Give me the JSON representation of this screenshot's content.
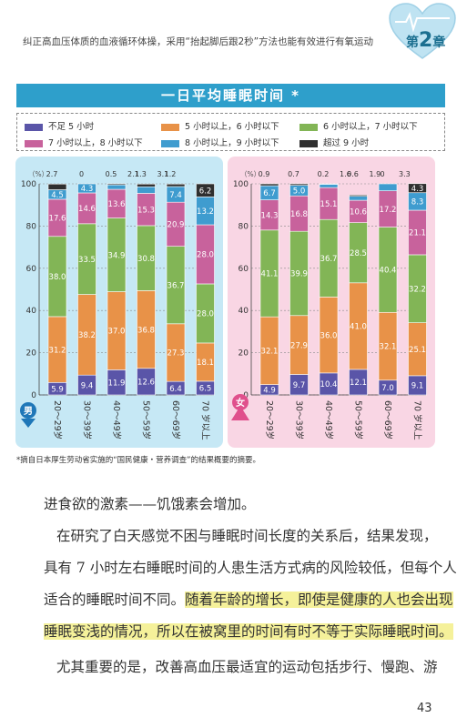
{
  "header": {
    "running_title": "纠正高血压体质的血液循环体操，采用“抬起脚后跟2秒”方法也能有效进行有氧运动",
    "chapter_prefix": "第",
    "chapter_number": "2",
    "chapter_suffix": "章"
  },
  "chart_title": "一日平均睡眠时间 *",
  "legend": [
    {
      "label": "不足 5 小时",
      "color": "#5a55a8"
    },
    {
      "label": "5 小时以上，6 小时以下",
      "color": "#e89248"
    },
    {
      "label": "6 小时以上，7 小时以下",
      "color": "#82b556"
    },
    {
      "label": "7 小时以上，8 小时以下",
      "color": "#c8629c"
    },
    {
      "label": "8 小时以上，9 小时以下",
      "color": "#3f9ccf"
    },
    {
      "label": "超过 9 小时",
      "color": "#2f2f2f"
    }
  ],
  "chart_data": [
    {
      "type": "bar",
      "stacked": true,
      "group": "男",
      "ylabel": "（%）",
      "ylim": [
        0,
        100
      ],
      "yticks": [
        "0",
        "20",
        "40",
        "60",
        "80",
        "100"
      ],
      "categories": [
        "20～29岁",
        "30～39岁",
        "40～49岁",
        "50～59岁",
        "60～69岁",
        "70 岁以上"
      ],
      "series": [
        {
          "name": "不足 5 小时",
          "values": [
            5.9,
            9.4,
            11.9,
            12.6,
            6.4,
            6.5
          ],
          "labels": [
            "5.9",
            "9.4",
            "11.9",
            "12.6",
            "6.4",
            "6.5"
          ]
        },
        {
          "name": "5 小时以上，6 小时以下",
          "values": [
            31.2,
            38.2,
            37.0,
            36.8,
            27.3,
            18.1
          ],
          "labels": [
            "31.2",
            "38.2",
            "37.0",
            "36.8",
            "27.3",
            "18.1"
          ]
        },
        {
          "name": "6 小时以上，7 小时以下",
          "values": [
            38.0,
            33.5,
            34.9,
            30.8,
            36.7,
            28.0
          ],
          "labels": [
            "38.0",
            "33.5",
            "34.9",
            "30.8",
            "36.7",
            "28.0"
          ]
        },
        {
          "name": "7 小时以上，8 小时以下",
          "values": [
            17.6,
            14.6,
            13.6,
            15.3,
            20.9,
            28.0
          ],
          "labels": [
            "17.6",
            "14.6",
            "13.6",
            "15.3",
            "20.9",
            "28.0"
          ]
        },
        {
          "name": "8 小时以上，9 小时以下",
          "values": [
            4.5,
            4.3,
            2.1,
            3.1,
            7.4,
            13.2
          ],
          "labels": [
            "4.5",
            "4.3",
            "2.1",
            "3.1",
            "7.4",
            "13.2"
          ]
        },
        {
          "name": "超过 9 小时",
          "values": [
            2.7,
            0,
            0.5,
            1.3,
            1.2,
            6.2
          ],
          "labels": [
            "2.7",
            "0",
            "0.5",
            "1.3",
            "1.2",
            "6.2"
          ]
        }
      ]
    },
    {
      "type": "bar",
      "stacked": true,
      "group": "女",
      "ylabel": "（%）",
      "ylim": [
        0,
        100
      ],
      "yticks": [
        "0",
        "20",
        "40",
        "60",
        "80",
        "100"
      ],
      "categories": [
        "20～29岁",
        "30～39岁",
        "40～49岁",
        "50～59岁",
        "60～69岁",
        "70 岁以上"
      ],
      "series": [
        {
          "name": "不足 5 小时",
          "values": [
            4.9,
            9.7,
            10.4,
            12.1,
            7.0,
            9.1
          ],
          "labels": [
            "4.9",
            "9.7",
            "10.4",
            "12.1",
            "7.0",
            "9.1"
          ]
        },
        {
          "name": "5 小时以上，6 小时以下",
          "values": [
            32.1,
            27.9,
            36.0,
            41.0,
            32.1,
            25.1
          ],
          "labels": [
            "32.1",
            "27.9",
            "36.0",
            "41.0",
            "32.1",
            "25.1"
          ]
        },
        {
          "name": "6 小时以上，7 小时以下",
          "values": [
            41.1,
            39.9,
            36.7,
            28.5,
            40.4,
            32.2
          ],
          "labels": [
            "41.1",
            "39.9",
            "36.7",
            "28.5",
            "40.4",
            "32.2"
          ]
        },
        {
          "name": "7 小时以上，8 小时以下",
          "values": [
            14.3,
            16.8,
            15.1,
            10.6,
            17.2,
            21.1
          ],
          "labels": [
            "14.3",
            "16.8",
            "15.1",
            "10.6",
            "17.2",
            "21.1"
          ]
        },
        {
          "name": "8 小时以上，9 小时以下",
          "values": [
            6.7,
            5.0,
            1.6,
            1.9,
            3.3,
            8.3
          ],
          "labels": [
            "6.7",
            "5.0",
            "1.6",
            "1.9",
            "3.3",
            "8.3"
          ]
        },
        {
          "name": "超过 9 小时",
          "values": [
            0.9,
            0.7,
            0.2,
            0.6,
            0,
            4.3
          ],
          "labels": [
            "0.9",
            "0.7",
            "0.2",
            "0.6",
            "0",
            "4.3"
          ]
        }
      ]
    }
  ],
  "footnote": "*摘自日本厚生劳动省实施的“国民健康・营养调查”的结果概要的摘要。",
  "body": {
    "line1": "进食欲的激素——饥饿素会增加。",
    "line2": "在研究了白天感觉不困与睡眠时间长度的关系后，结果发现，",
    "line3": "具有 7 小时左右睡眠时间的人患生活方式病的风险较低，但每个人",
    "line4_plain": "适合的睡眠时间不同。",
    "line4_highlight": "随着年龄的增长，即使是健康的人也会出现",
    "line5_highlight": "睡眠变浅的情况，所以在被窝里的时间有时不等于实际睡眠时间。",
    "line6": "尤其重要的是，改善高血压最适宜的运动包括步行、慢跑、游"
  },
  "page_number": "43"
}
